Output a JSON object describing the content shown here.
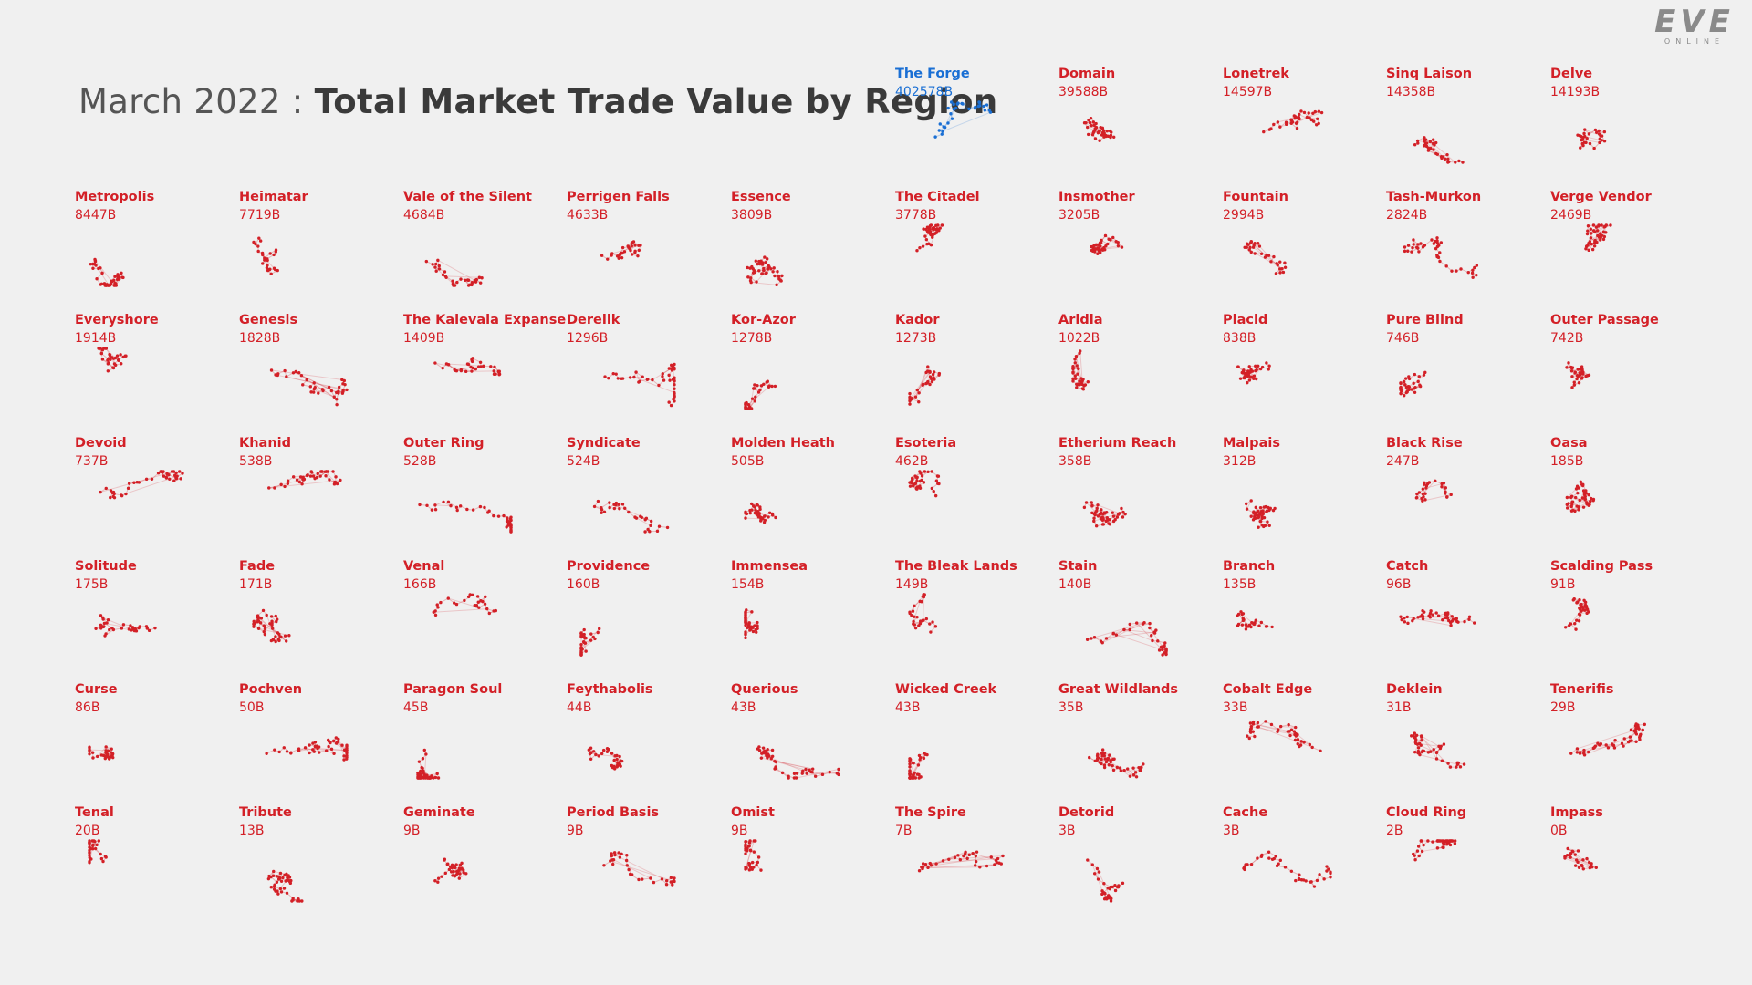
{
  "title": {
    "prefix": "March 2022 :",
    "main": "Total Market Trade Value by Region"
  },
  "logo": {
    "main": "EVE",
    "sub": "ONLINE"
  },
  "colors": {
    "highlight": "#1a6fd4",
    "default": "#d32027",
    "background": "#f0f0f0"
  },
  "chart_data": {
    "type": "small-multiples",
    "highlight_region": "The Forge",
    "regions": [
      {
        "name": "The Forge",
        "value": "402578B"
      },
      {
        "name": "Domain",
        "value": "39588B"
      },
      {
        "name": "Lonetrek",
        "value": "14597B"
      },
      {
        "name": "Sinq Laison",
        "value": "14358B"
      },
      {
        "name": "Delve",
        "value": "14193B"
      },
      {
        "name": "Metropolis",
        "value": "8447B"
      },
      {
        "name": "Heimatar",
        "value": "7719B"
      },
      {
        "name": "Vale of the Silent",
        "value": "4684B"
      },
      {
        "name": "Perrigen Falls",
        "value": "4633B"
      },
      {
        "name": "Essence",
        "value": "3809B"
      },
      {
        "name": "The Citadel",
        "value": "3778B"
      },
      {
        "name": "Insmother",
        "value": "3205B"
      },
      {
        "name": "Fountain",
        "value": "2994B"
      },
      {
        "name": "Tash-Murkon",
        "value": "2824B"
      },
      {
        "name": "Verge Vendor",
        "value": "2469B"
      },
      {
        "name": "Everyshore",
        "value": "1914B"
      },
      {
        "name": "Genesis",
        "value": "1828B"
      },
      {
        "name": "The Kalevala Expanse",
        "value": "1409B"
      },
      {
        "name": "Derelik",
        "value": "1296B"
      },
      {
        "name": "Kor-Azor",
        "value": "1278B"
      },
      {
        "name": "Kador",
        "value": "1273B"
      },
      {
        "name": "Aridia",
        "value": "1022B"
      },
      {
        "name": "Placid",
        "value": "838B"
      },
      {
        "name": "Pure Blind",
        "value": "746B"
      },
      {
        "name": "Outer Passage",
        "value": "742B"
      },
      {
        "name": "Devoid",
        "value": "737B"
      },
      {
        "name": "Khanid",
        "value": "538B"
      },
      {
        "name": "Outer Ring",
        "value": "528B"
      },
      {
        "name": "Syndicate",
        "value": "524B"
      },
      {
        "name": "Molden Heath",
        "value": "505B"
      },
      {
        "name": "Esoteria",
        "value": "462B"
      },
      {
        "name": "Etherium Reach",
        "value": "358B"
      },
      {
        "name": "Malpais",
        "value": "312B"
      },
      {
        "name": "Black Rise",
        "value": "247B"
      },
      {
        "name": "Oasa",
        "value": "185B"
      },
      {
        "name": "Solitude",
        "value": "175B"
      },
      {
        "name": "Fade",
        "value": "171B"
      },
      {
        "name": "Venal",
        "value": "166B"
      },
      {
        "name": "Providence",
        "value": "160B"
      },
      {
        "name": "Immensea",
        "value": "154B"
      },
      {
        "name": "The Bleak Lands",
        "value": "149B"
      },
      {
        "name": "Stain",
        "value": "140B"
      },
      {
        "name": "Branch",
        "value": "135B"
      },
      {
        "name": "Catch",
        "value": "96B"
      },
      {
        "name": "Scalding Pass",
        "value": "91B"
      },
      {
        "name": "Curse",
        "value": "86B"
      },
      {
        "name": "Pochven",
        "value": "50B"
      },
      {
        "name": "Paragon Soul",
        "value": "45B"
      },
      {
        "name": "Feythabolis",
        "value": "44B"
      },
      {
        "name": "Querious",
        "value": "43B"
      },
      {
        "name": "Wicked Creek",
        "value": "43B"
      },
      {
        "name": "Great Wildlands",
        "value": "35B"
      },
      {
        "name": "Cobalt Edge",
        "value": "33B"
      },
      {
        "name": "Deklein",
        "value": "31B"
      },
      {
        "name": "Tenerifis",
        "value": "29B"
      },
      {
        "name": "Tenal",
        "value": "20B"
      },
      {
        "name": "Tribute",
        "value": "13B"
      },
      {
        "name": "Geminate",
        "value": "9B"
      },
      {
        "name": "Period Basis",
        "value": "9B"
      },
      {
        "name": "Omist",
        "value": "9B"
      },
      {
        "name": "The Spire",
        "value": "7B"
      },
      {
        "name": "Detorid",
        "value": "3B"
      },
      {
        "name": "Cache",
        "value": "3B"
      },
      {
        "name": "Cloud Ring",
        "value": "2B"
      },
      {
        "name": "Impass",
        "value": "0B"
      }
    ]
  }
}
